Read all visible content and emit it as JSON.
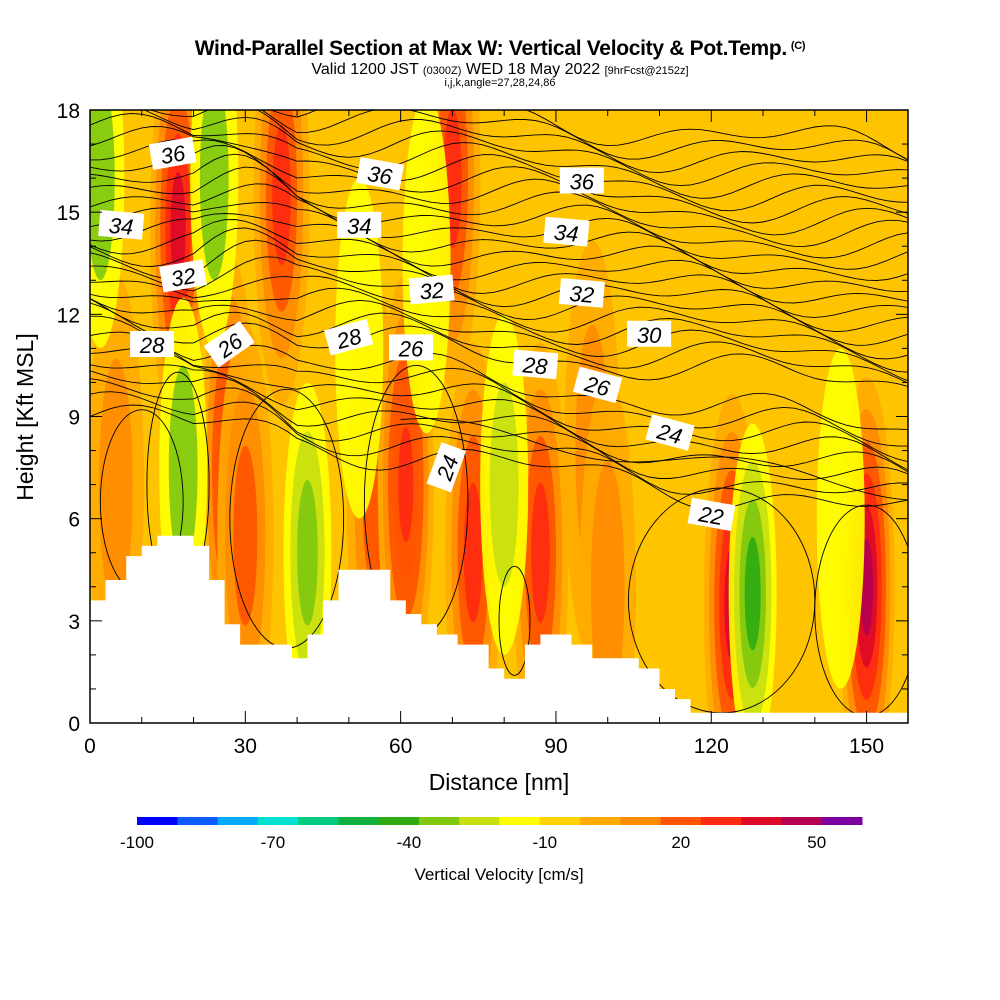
{
  "header": {
    "title": "Wind-Parallel Section at Max W: Vertical Velocity & Pot.Temp.",
    "copyright": "(C)",
    "valid_prefix": "Valid 1200 JST",
    "valid_utc": "(0300Z)",
    "valid_date": "WED 18 May 2022",
    "forecast": "[9hrFcst@2152z]",
    "indices": "i,j,k,angle=27,28,24,86"
  },
  "colorbar": {
    "title": "Vertical Velocity [cm/s]",
    "tick_labels": [
      "-100",
      "-70",
      "-40",
      "-10",
      "20",
      "50"
    ],
    "colors": [
      "#0000ff",
      "#0a5cff",
      "#00aaff",
      "#00e0d0",
      "#00cc80",
      "#10b040",
      "#30aa10",
      "#80c810",
      "#c8e010",
      "#ffff00",
      "#ffd200",
      "#ffaa00",
      "#ff8c00",
      "#ff5500",
      "#ff2a10",
      "#dd0a28",
      "#b40050",
      "#7a00a0"
    ]
  },
  "chart_data": {
    "type": "heatmap",
    "xlabel": "Distance [nm]",
    "ylabel": "Height [Kft MSL]",
    "xlim": [
      0,
      158
    ],
    "ylim": [
      0,
      18
    ],
    "x_ticks": [
      0,
      30,
      60,
      90,
      120,
      150
    ],
    "y_ticks": [
      0,
      3,
      6,
      9,
      12,
      15,
      18
    ],
    "field": "Vertical Velocity",
    "units": "cm/s",
    "color_range": [
      -100,
      60
    ],
    "background_value": -8,
    "terrain_kft": [
      [
        0,
        3.6
      ],
      [
        3,
        4.2
      ],
      [
        7,
        4.9
      ],
      [
        10,
        5.2
      ],
      [
        13,
        5.5
      ],
      [
        20,
        5.2
      ],
      [
        23,
        4.2
      ],
      [
        26,
        2.9
      ],
      [
        29,
        2.3
      ],
      [
        39,
        1.9
      ],
      [
        42,
        2.6
      ],
      [
        45,
        3.6
      ],
      [
        48,
        4.5
      ],
      [
        58,
        3.6
      ],
      [
        61,
        3.2
      ],
      [
        64,
        2.9
      ],
      [
        67,
        2.6
      ],
      [
        71,
        2.3
      ],
      [
        77,
        1.6
      ],
      [
        80,
        1.3
      ],
      [
        84,
        2.3
      ],
      [
        87,
        2.6
      ],
      [
        93,
        2.3
      ],
      [
        97,
        1.9
      ],
      [
        106,
        1.6
      ],
      [
        110,
        1.0
      ],
      [
        113,
        0.7
      ],
      [
        116,
        0.3
      ],
      [
        158,
        0.3
      ]
    ],
    "updraft_cores": [
      {
        "x": 17,
        "y": 14.5,
        "w": 35
      },
      {
        "x": 37,
        "y": 15.5,
        "w": 25
      },
      {
        "x": 70,
        "y": 16.0,
        "w": 30
      },
      {
        "x": 27,
        "y": 7.5,
        "w": 32
      },
      {
        "x": 30,
        "y": 5.5,
        "w": 22
      },
      {
        "x": 55,
        "y": 6.5,
        "w": 20
      },
      {
        "x": 61,
        "y": 7.0,
        "w": 32
      },
      {
        "x": 74,
        "y": 5.0,
        "w": 28
      },
      {
        "x": 87,
        "y": 5.0,
        "w": 30
      },
      {
        "x": 97,
        "y": 8.0,
        "w": 12
      },
      {
        "x": 124,
        "y": 3.5,
        "w": 35
      },
      {
        "x": 150,
        "y": 4.0,
        "w": 45
      },
      {
        "x": 100,
        "y": 4.0,
        "w": 14
      },
      {
        "x": 5,
        "y": 7.0,
        "w": 12
      }
    ],
    "downdraft_cores": [
      {
        "x": 2,
        "y": 16.0,
        "w": -30
      },
      {
        "x": 24,
        "y": 16.0,
        "w": -30
      },
      {
        "x": 18,
        "y": 7.5,
        "w": -30
      },
      {
        "x": 42,
        "y": 5.0,
        "w": -33
      },
      {
        "x": 65,
        "y": 13.5,
        "w": -18
      },
      {
        "x": 80,
        "y": 7.0,
        "w": -25
      },
      {
        "x": 128,
        "y": 3.8,
        "w": -40
      },
      {
        "x": 52,
        "y": 11.0,
        "w": -15
      },
      {
        "x": 145,
        "y": 6.0,
        "w": -20
      }
    ],
    "theta_contour_labels": [
      {
        "text": "36",
        "x": 16,
        "y": 16.7,
        "angle": -10
      },
      {
        "text": "36",
        "x": 56,
        "y": 16.1,
        "angle": 10
      },
      {
        "text": "36",
        "x": 95,
        "y": 15.9,
        "angle": 0
      },
      {
        "text": "34",
        "x": 6,
        "y": 14.6,
        "angle": 5
      },
      {
        "text": "34",
        "x": 52,
        "y": 14.6,
        "angle": 0
      },
      {
        "text": "34",
        "x": 92,
        "y": 14.4,
        "angle": 5
      },
      {
        "text": "32",
        "x": 18,
        "y": 13.1,
        "angle": -10
      },
      {
        "text": "32",
        "x": 66,
        "y": 12.7,
        "angle": -5
      },
      {
        "text": "32",
        "x": 95,
        "y": 12.6,
        "angle": 5
      },
      {
        "text": "30",
        "x": 108,
        "y": 11.4,
        "angle": 0
      },
      {
        "text": "28",
        "x": 12,
        "y": 11.1,
        "angle": 0
      },
      {
        "text": "28",
        "x": 50,
        "y": 11.3,
        "angle": -15
      },
      {
        "text": "28",
        "x": 86,
        "y": 10.5,
        "angle": 5
      },
      {
        "text": "26",
        "x": 27,
        "y": 11.1,
        "angle": -35
      },
      {
        "text": "26",
        "x": 62,
        "y": 11.0,
        "angle": 0
      },
      {
        "text": "26",
        "x": 98,
        "y": 9.9,
        "angle": 15
      },
      {
        "text": "24",
        "x": 112,
        "y": 8.5,
        "angle": 15
      },
      {
        "text": "24",
        "x": 69,
        "y": 7.5,
        "angle": -70
      },
      {
        "text": "22",
        "x": 120,
        "y": 6.1,
        "angle": 10
      }
    ]
  }
}
